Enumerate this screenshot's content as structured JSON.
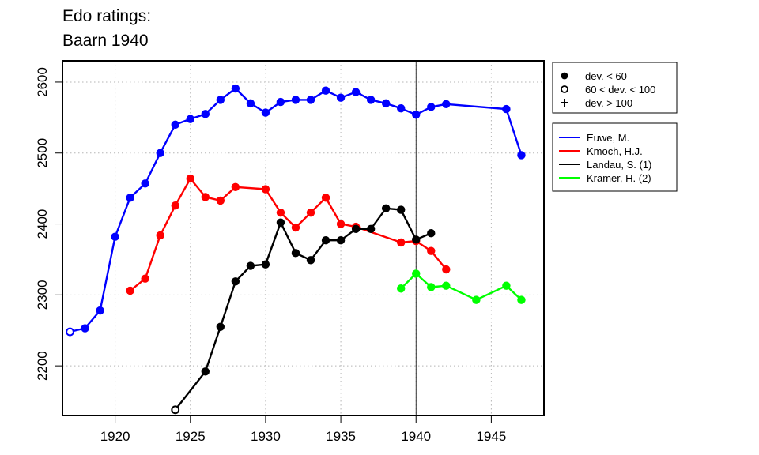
{
  "title_lines": [
    "Edo ratings:",
    "Baarn 1940"
  ],
  "chart_data": {
    "type": "line",
    "title": "Edo ratings: Baarn 1940",
    "xlim": [
      1916.5,
      1948.5
    ],
    "ylim": [
      2130,
      2630
    ],
    "x_ticks": [
      1920,
      1925,
      1930,
      1935,
      1940,
      1945
    ],
    "y_ticks": [
      2200,
      2300,
      2400,
      2500,
      2600
    ],
    "grid": true,
    "reference_line_x": 1940,
    "marker_legend": [
      {
        "symbol": "filled-circle",
        "label": "dev. < 60"
      },
      {
        "symbol": "open-circle",
        "label": "60 < dev. < 100"
      },
      {
        "symbol": "plus",
        "label": "dev. > 100"
      }
    ],
    "series": [
      {
        "name": "Euwe, M.",
        "color": "#0000ff",
        "points": [
          {
            "x": 1917,
            "y": 2248,
            "m": "open"
          },
          {
            "x": 1918,
            "y": 2253,
            "m": "filled"
          },
          {
            "x": 1919,
            "y": 2278,
            "m": "filled"
          },
          {
            "x": 1920,
            "y": 2382,
            "m": "filled"
          },
          {
            "x": 1921,
            "y": 2437,
            "m": "filled"
          },
          {
            "x": 1922,
            "y": 2457,
            "m": "filled"
          },
          {
            "x": 1923,
            "y": 2500,
            "m": "filled"
          },
          {
            "x": 1924,
            "y": 2540,
            "m": "filled"
          },
          {
            "x": 1925,
            "y": 2548,
            "m": "filled"
          },
          {
            "x": 1926,
            "y": 2555,
            "m": "filled"
          },
          {
            "x": 1927,
            "y": 2575,
            "m": "filled"
          },
          {
            "x": 1928,
            "y": 2591,
            "m": "filled"
          },
          {
            "x": 1929,
            "y": 2570,
            "m": "filled"
          },
          {
            "x": 1930,
            "y": 2557,
            "m": "filled"
          },
          {
            "x": 1931,
            "y": 2572,
            "m": "filled"
          },
          {
            "x": 1932,
            "y": 2575,
            "m": "filled"
          },
          {
            "x": 1933,
            "y": 2575,
            "m": "filled"
          },
          {
            "x": 1934,
            "y": 2588,
            "m": "filled"
          },
          {
            "x": 1935,
            "y": 2578,
            "m": "filled"
          },
          {
            "x": 1936,
            "y": 2586,
            "m": "filled"
          },
          {
            "x": 1937,
            "y": 2575,
            "m": "filled"
          },
          {
            "x": 1938,
            "y": 2570,
            "m": "filled"
          },
          {
            "x": 1939,
            "y": 2563,
            "m": "filled"
          },
          {
            "x": 1940,
            "y": 2554,
            "m": "filled"
          },
          {
            "x": 1941,
            "y": 2565,
            "m": "filled"
          },
          {
            "x": 1942,
            "y": 2569,
            "m": "filled"
          },
          {
            "x": 1946,
            "y": 2562,
            "m": "filled"
          },
          {
            "x": 1947,
            "y": 2497,
            "m": "filled"
          }
        ]
      },
      {
        "name": "Kmoch, H.J.",
        "color": "#ff0000",
        "points": [
          {
            "x": 1921,
            "y": 2306,
            "m": "filled"
          },
          {
            "x": 1922,
            "y": 2323,
            "m": "filled"
          },
          {
            "x": 1923,
            "y": 2384,
            "m": "filled"
          },
          {
            "x": 1924,
            "y": 2426,
            "m": "filled"
          },
          {
            "x": 1925,
            "y": 2464,
            "m": "filled"
          },
          {
            "x": 1926,
            "y": 2438,
            "m": "filled"
          },
          {
            "x": 1927,
            "y": 2433,
            "m": "filled"
          },
          {
            "x": 1928,
            "y": 2452,
            "m": "filled"
          },
          {
            "x": 1930,
            "y": 2449,
            "m": "filled"
          },
          {
            "x": 1931,
            "y": 2416,
            "m": "filled"
          },
          {
            "x": 1932,
            "y": 2395,
            "m": "filled"
          },
          {
            "x": 1933,
            "y": 2416,
            "m": "filled"
          },
          {
            "x": 1934,
            "y": 2437,
            "m": "filled"
          },
          {
            "x": 1935,
            "y": 2400,
            "m": "filled"
          },
          {
            "x": 1936,
            "y": 2396,
            "m": "filled"
          },
          {
            "x": 1939,
            "y": 2374,
            "m": "filled"
          },
          {
            "x": 1940,
            "y": 2376,
            "m": "filled"
          },
          {
            "x": 1941,
            "y": 2362,
            "m": "filled"
          },
          {
            "x": 1942,
            "y": 2336,
            "m": "filled"
          }
        ]
      },
      {
        "name": "Landau, S. (1)",
        "color": "#000000",
        "points": [
          {
            "x": 1924,
            "y": 2138,
            "m": "open"
          },
          {
            "x": 1926,
            "y": 2192,
            "m": "filled"
          },
          {
            "x": 1927,
            "y": 2255,
            "m": "filled"
          },
          {
            "x": 1928,
            "y": 2319,
            "m": "filled"
          },
          {
            "x": 1929,
            "y": 2341,
            "m": "filled"
          },
          {
            "x": 1930,
            "y": 2343,
            "m": "filled"
          },
          {
            "x": 1931,
            "y": 2402,
            "m": "filled"
          },
          {
            "x": 1932,
            "y": 2359,
            "m": "filled"
          },
          {
            "x": 1933,
            "y": 2349,
            "m": "filled"
          },
          {
            "x": 1934,
            "y": 2377,
            "m": "filled"
          },
          {
            "x": 1935,
            "y": 2377,
            "m": "filled"
          },
          {
            "x": 1936,
            "y": 2393,
            "m": "filled"
          },
          {
            "x": 1937,
            "y": 2393,
            "m": "filled"
          },
          {
            "x": 1938,
            "y": 2422,
            "m": "filled"
          },
          {
            "x": 1939,
            "y": 2420,
            "m": "filled"
          },
          {
            "x": 1940,
            "y": 2378,
            "m": "filled"
          },
          {
            "x": 1941,
            "y": 2387,
            "m": "filled"
          }
        ]
      },
      {
        "name": "Kramer, H. (2)",
        "color": "#00ff00",
        "points": [
          {
            "x": 1939,
            "y": 2309,
            "m": "filled"
          },
          {
            "x": 1940,
            "y": 2330,
            "m": "filled"
          },
          {
            "x": 1941,
            "y": 2311,
            "m": "filled"
          },
          {
            "x": 1942,
            "y": 2313,
            "m": "filled"
          },
          {
            "x": 1944,
            "y": 2293,
            "m": "filled"
          },
          {
            "x": 1946,
            "y": 2313,
            "m": "filled"
          },
          {
            "x": 1947,
            "y": 2293,
            "m": "filled"
          }
        ]
      }
    ]
  }
}
